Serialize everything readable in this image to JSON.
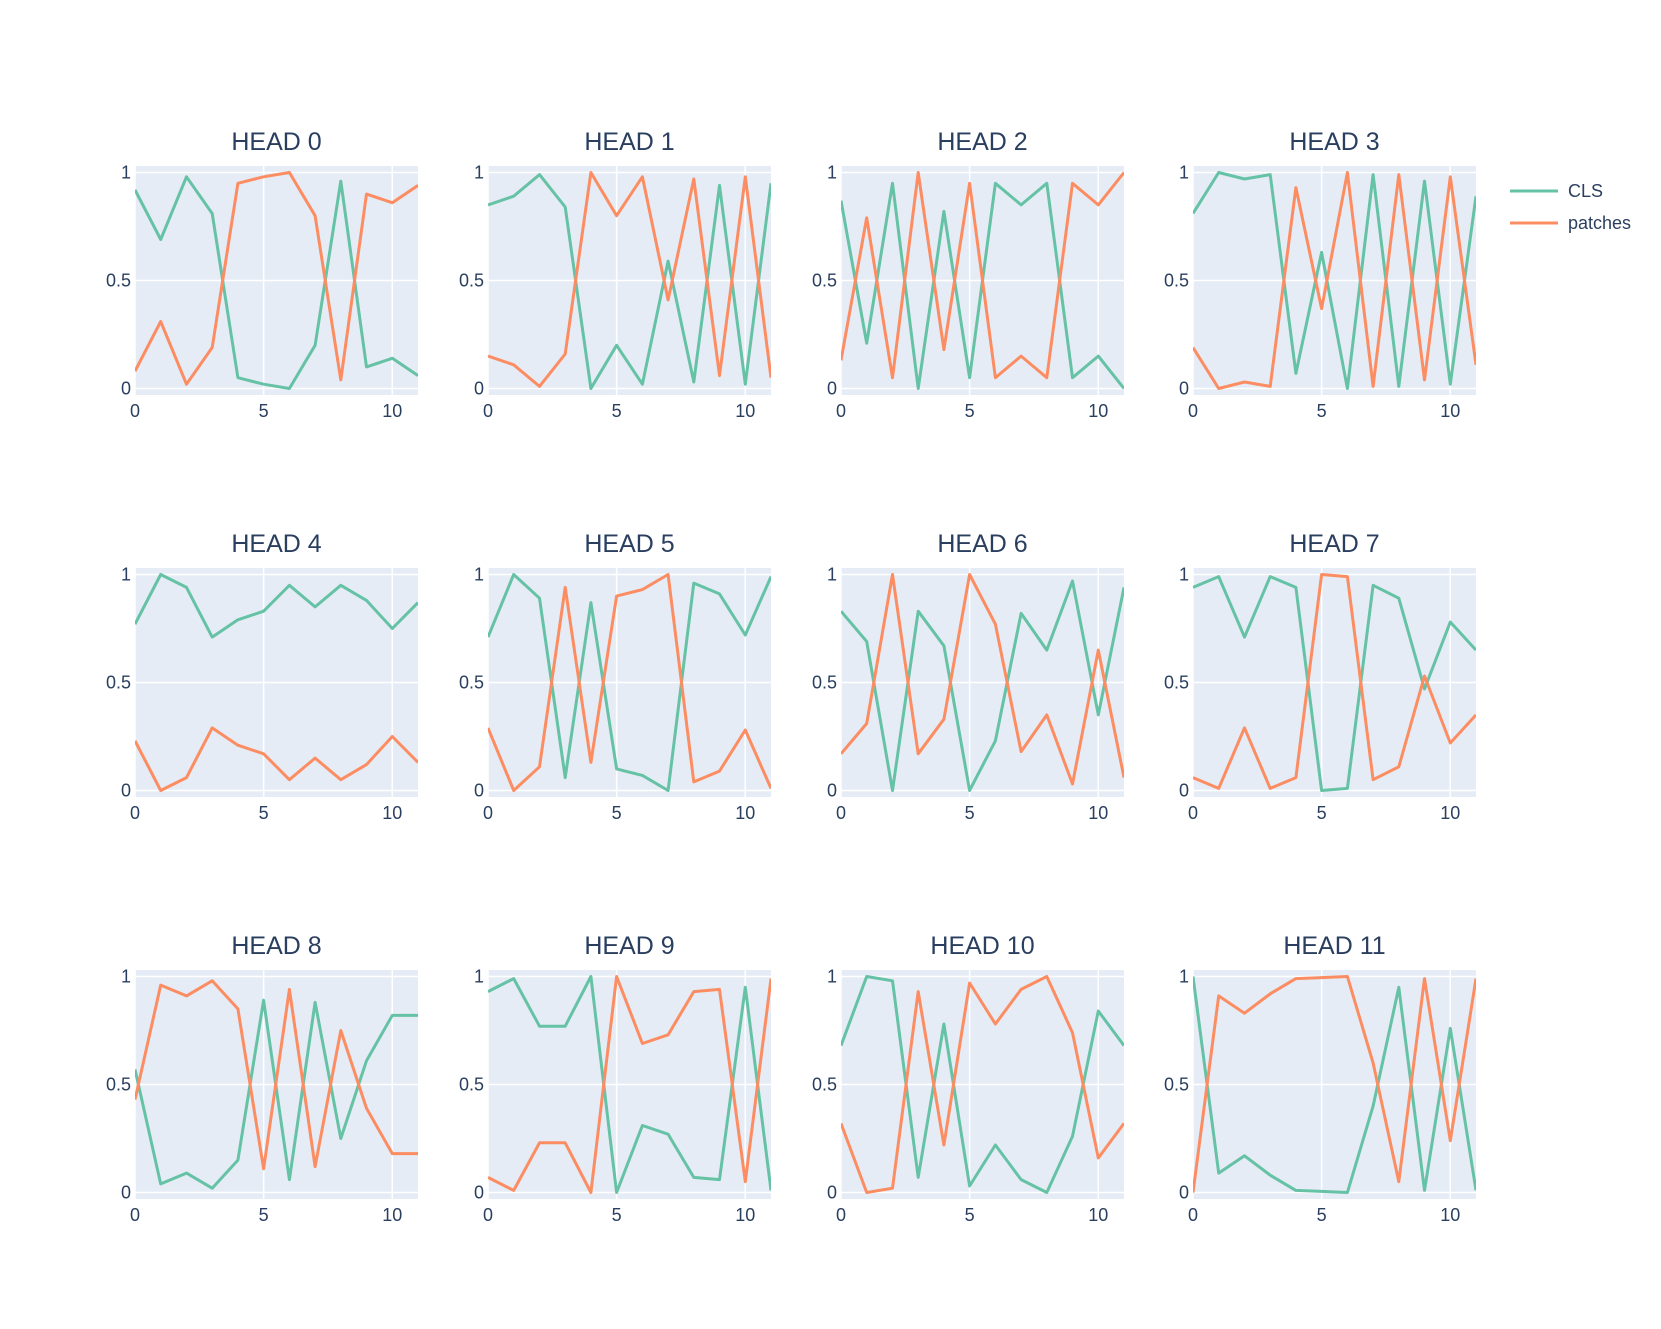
{
  "chart_data": {
    "type": "line",
    "layout": {
      "rows": 3,
      "cols": 4
    },
    "colors": {
      "CLS": "#66c2a5",
      "patches": "#fc8d62",
      "plot_bg": "#e5ecf6",
      "grid": "#ffffff",
      "text": "#2a3f5f"
    },
    "legend": {
      "position": "top-right",
      "entries": [
        "CLS",
        "patches"
      ]
    },
    "x": [
      0,
      1,
      2,
      3,
      4,
      5,
      6,
      7,
      8,
      9,
      10,
      11
    ],
    "xlim": [
      0,
      11
    ],
    "ylim": [
      -0.03,
      1.03
    ],
    "x_ticks": [
      "0",
      "5",
      "10"
    ],
    "y_ticks": [
      "0",
      "0.5",
      "1"
    ],
    "grid": true,
    "subplots": [
      {
        "title": "HEAD 0",
        "series": [
          {
            "name": "CLS",
            "values": [
              0.92,
              0.69,
              0.98,
              0.81,
              0.05,
              0.02,
              0.0,
              0.2,
              0.96,
              0.1,
              0.14,
              0.06
            ]
          },
          {
            "name": "patches",
            "values": [
              0.08,
              0.31,
              0.02,
              0.19,
              0.95,
              0.98,
              1.0,
              0.8,
              0.04,
              0.9,
              0.86,
              0.94
            ]
          }
        ]
      },
      {
        "title": "HEAD 1",
        "series": [
          {
            "name": "CLS",
            "values": [
              0.85,
              0.89,
              0.99,
              0.84,
              0.0,
              0.2,
              0.02,
              0.59,
              0.03,
              0.94,
              0.02,
              0.95
            ]
          },
          {
            "name": "patches",
            "values": [
              0.15,
              0.11,
              0.01,
              0.16,
              1.0,
              0.8,
              0.98,
              0.41,
              0.97,
              0.06,
              0.98,
              0.05
            ]
          }
        ]
      },
      {
        "title": "HEAD 2",
        "series": [
          {
            "name": "CLS",
            "values": [
              0.87,
              0.21,
              0.95,
              0.0,
              0.82,
              0.05,
              0.95,
              0.85,
              0.95,
              0.05,
              0.15,
              0.0
            ]
          },
          {
            "name": "patches",
            "values": [
              0.13,
              0.79,
              0.05,
              1.0,
              0.18,
              0.95,
              0.05,
              0.15,
              0.05,
              0.95,
              0.85,
              1.0
            ]
          }
        ]
      },
      {
        "title": "HEAD 3",
        "series": [
          {
            "name": "CLS",
            "values": [
              0.81,
              1.0,
              0.97,
              0.99,
              0.07,
              0.63,
              0.0,
              0.99,
              0.01,
              0.96,
              0.02,
              0.89
            ]
          },
          {
            "name": "patches",
            "values": [
              0.19,
              0.0,
              0.03,
              0.01,
              0.93,
              0.37,
              1.0,
              0.01,
              0.99,
              0.04,
              0.98,
              0.11
            ]
          }
        ]
      },
      {
        "title": "HEAD 4",
        "series": [
          {
            "name": "CLS",
            "values": [
              0.77,
              1.0,
              0.94,
              0.71,
              0.79,
              0.83,
              0.95,
              0.85,
              0.95,
              0.88,
              0.75,
              0.87
            ]
          },
          {
            "name": "patches",
            "values": [
              0.23,
              0.0,
              0.06,
              0.29,
              0.21,
              0.17,
              0.05,
              0.15,
              0.05,
              0.12,
              0.25,
              0.13
            ]
          }
        ]
      },
      {
        "title": "HEAD 5",
        "series": [
          {
            "name": "CLS",
            "values": [
              0.71,
              1.0,
              0.89,
              0.06,
              0.87,
              0.1,
              0.07,
              0.0,
              0.96,
              0.91,
              0.72,
              0.99
            ]
          },
          {
            "name": "patches",
            "values": [
              0.29,
              0.0,
              0.11,
              0.94,
              0.13,
              0.9,
              0.93,
              1.0,
              0.04,
              0.09,
              0.28,
              0.01
            ]
          }
        ]
      },
      {
        "title": "HEAD 6",
        "series": [
          {
            "name": "CLS",
            "values": [
              0.83,
              0.69,
              0.0,
              0.83,
              0.67,
              0.0,
              0.23,
              0.82,
              0.65,
              0.97,
              0.35,
              0.94
            ]
          },
          {
            "name": "patches",
            "values": [
              0.17,
              0.31,
              1.0,
              0.17,
              0.33,
              1.0,
              0.77,
              0.18,
              0.35,
              0.03,
              0.65,
              0.06
            ]
          }
        ]
      },
      {
        "title": "HEAD 7",
        "series": [
          {
            "name": "CLS",
            "values": [
              0.94,
              0.99,
              0.71,
              0.99,
              0.94,
              0.0,
              0.01,
              0.95,
              0.89,
              0.47,
              0.78,
              0.65
            ]
          },
          {
            "name": "patches",
            "values": [
              0.06,
              0.01,
              0.29,
              0.01,
              0.06,
              1.0,
              0.99,
              0.05,
              0.11,
              0.53,
              0.22,
              0.35
            ]
          }
        ]
      },
      {
        "title": "HEAD 8",
        "series": [
          {
            "name": "CLS",
            "values": [
              0.57,
              0.04,
              0.09,
              0.02,
              0.15,
              0.89,
              0.06,
              0.88,
              0.25,
              0.61,
              0.82,
              0.82
            ]
          },
          {
            "name": "patches",
            "values": [
              0.43,
              0.96,
              0.91,
              0.98,
              0.85,
              0.11,
              0.94,
              0.12,
              0.75,
              0.39,
              0.18,
              0.18
            ]
          }
        ]
      },
      {
        "title": "HEAD 9",
        "series": [
          {
            "name": "CLS",
            "values": [
              0.93,
              0.99,
              0.77,
              0.77,
              1.0,
              0.0,
              0.31,
              0.27,
              0.07,
              0.06,
              0.95,
              0.01
            ]
          },
          {
            "name": "patches",
            "values": [
              0.07,
              0.01,
              0.23,
              0.23,
              0.0,
              1.0,
              0.69,
              0.73,
              0.93,
              0.94,
              0.05,
              0.99
            ]
          }
        ]
      },
      {
        "title": "HEAD 10",
        "series": [
          {
            "name": "CLS",
            "values": [
              0.68,
              1.0,
              0.98,
              0.07,
              0.78,
              0.03,
              0.22,
              0.06,
              0.0,
              0.26,
              0.84,
              0.68
            ]
          },
          {
            "name": "patches",
            "values": [
              0.32,
              0.0,
              0.02,
              0.93,
              0.22,
              0.97,
              0.78,
              0.94,
              1.0,
              0.74,
              0.16,
              0.32
            ]
          }
        ]
      },
      {
        "title": "HEAD 11",
        "series": [
          {
            "name": "CLS",
            "values": [
              1.0,
              0.09,
              0.17,
              0.08,
              0.01,
              0.005,
              0.0,
              0.4,
              0.95,
              0.01,
              0.76,
              0.01
            ]
          },
          {
            "name": "patches",
            "values": [
              0.0,
              0.91,
              0.83,
              0.92,
              0.99,
              0.995,
              1.0,
              0.6,
              0.05,
              0.99,
              0.24,
              0.99
            ]
          }
        ]
      }
    ]
  }
}
